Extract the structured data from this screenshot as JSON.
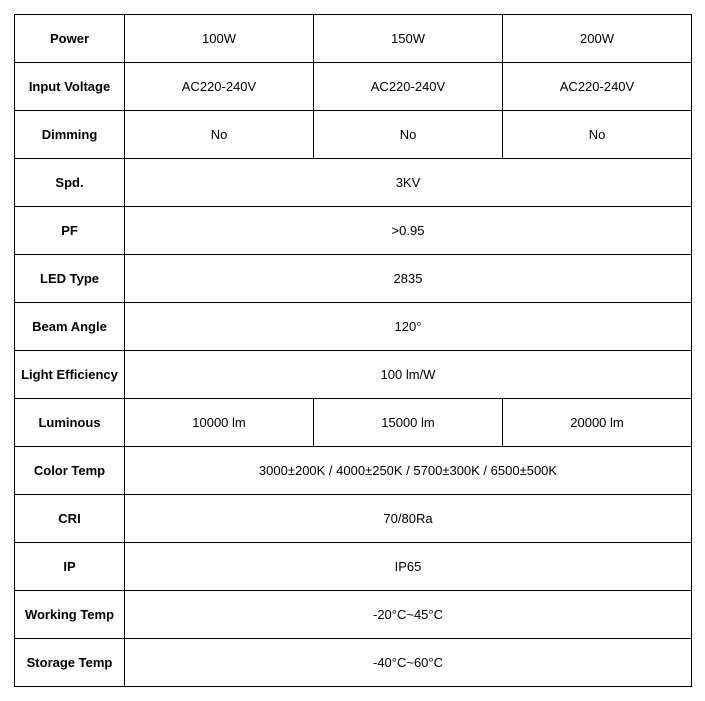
{
  "table": {
    "type": "table",
    "border_color": "#000000",
    "background_color": "#ffffff",
    "header_font_weight": "bold",
    "cell_font_weight": "normal",
    "font_size": 13,
    "rows": [
      {
        "label": "Power",
        "values": [
          "100W",
          "150W",
          "200W"
        ],
        "span": false
      },
      {
        "label": "Input Voltage",
        "values": [
          "AC220-240V",
          "AC220-240V",
          "AC220-240V"
        ],
        "span": false
      },
      {
        "label": "Dimming",
        "values": [
          "No",
          "No",
          "No"
        ],
        "span": false
      },
      {
        "label": "Spd.",
        "values": [
          "3KV"
        ],
        "span": true
      },
      {
        "label": "PF",
        "values": [
          ">0.95"
        ],
        "span": true
      },
      {
        "label": "LED Type",
        "values": [
          "2835"
        ],
        "span": true
      },
      {
        "label": "Beam Angle",
        "values": [
          "120°"
        ],
        "span": true
      },
      {
        "label": "Light Efficiency",
        "values": [
          "100 lm/W"
        ],
        "span": true
      },
      {
        "label": "Luminous",
        "values": [
          "10000 lm",
          "15000 lm",
          "20000 lm"
        ],
        "span": false
      },
      {
        "label": "Color Temp",
        "values": [
          "3000±200K / 4000±250K / 5700±300K / 6500±500K"
        ],
        "span": true
      },
      {
        "label": "CRI",
        "values": [
          "70/80Ra"
        ],
        "span": true
      },
      {
        "label": "IP",
        "values": [
          "IP65"
        ],
        "span": true
      },
      {
        "label": "Working Temp",
        "values": [
          "-20°C~45°C"
        ],
        "span": true
      },
      {
        "label": "Storage Temp",
        "values": [
          "-40°C~60°C"
        ],
        "span": true
      }
    ]
  }
}
